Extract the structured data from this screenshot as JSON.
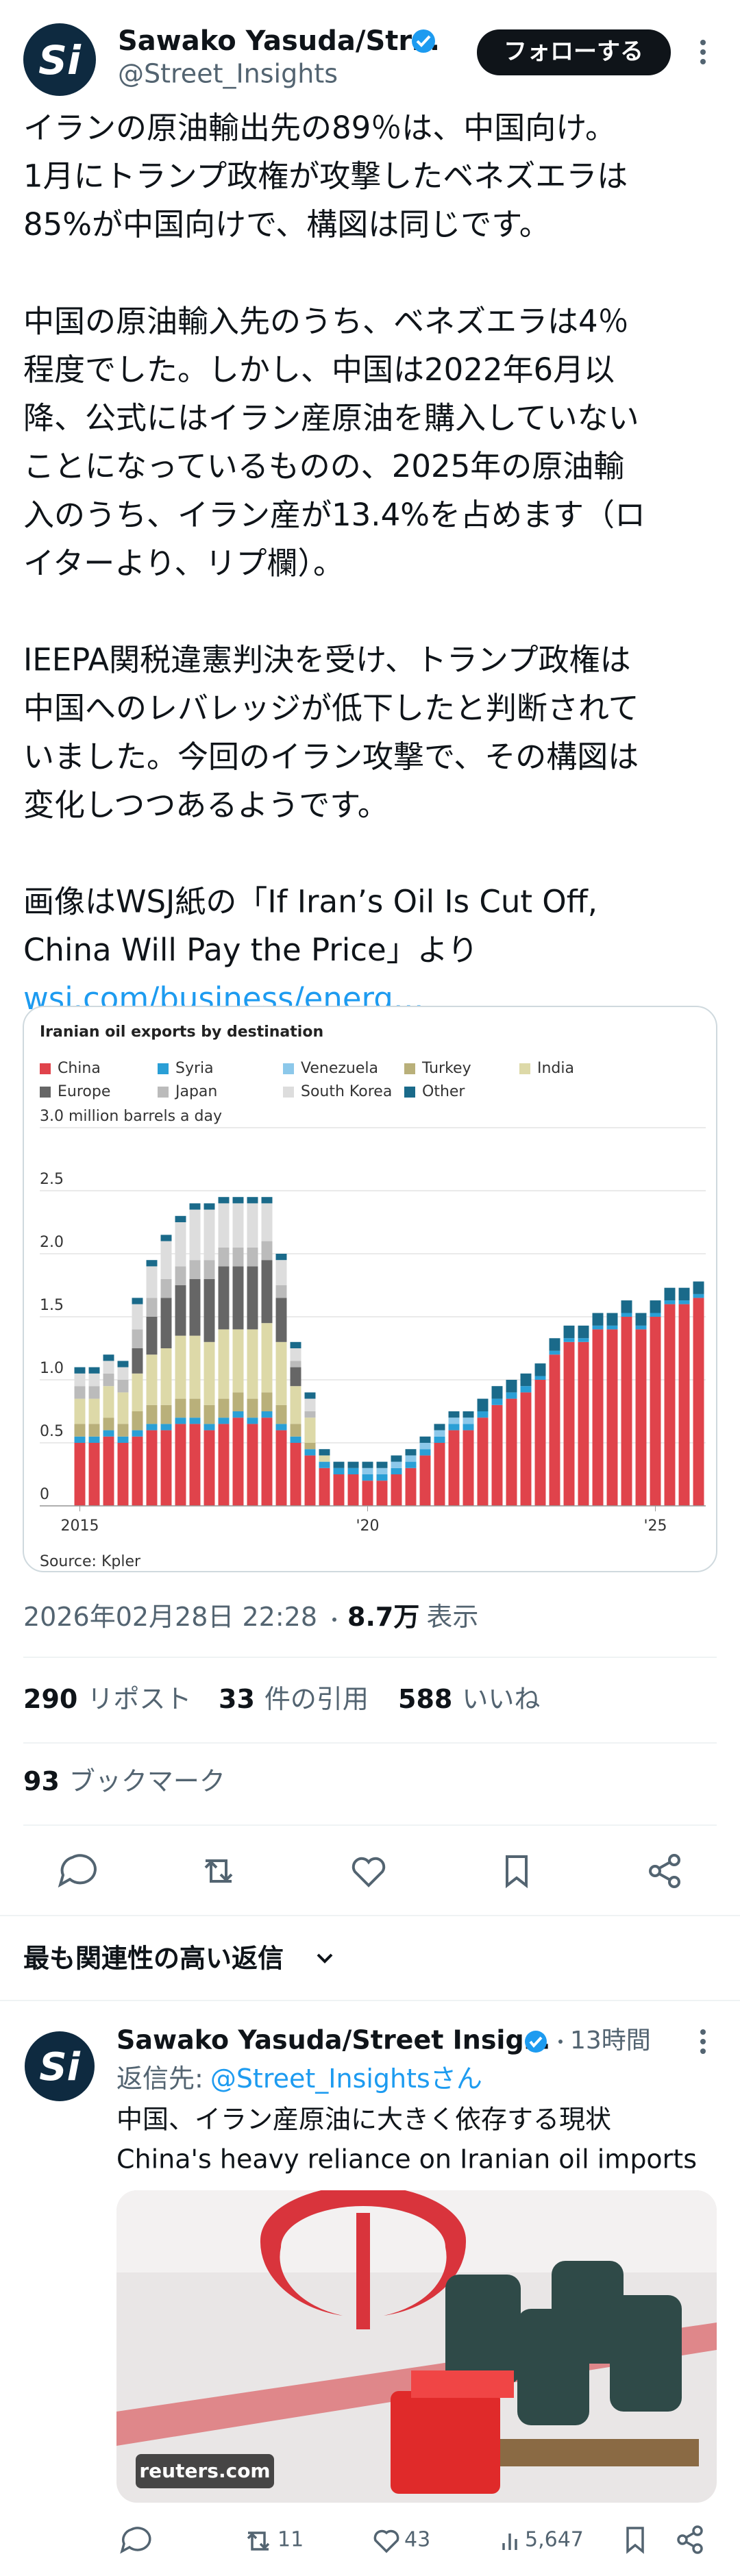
{
  "header": {
    "name": "Sawako Yasuda/Str…",
    "handle": "@Street_Insights",
    "follow": "フォローする"
  },
  "body": [
    [
      "イランの原油輸出先の89％は、中国向け。",
      "1月にトランプ政権が攻撃したベネズエラは",
      "85%が中国向けで、構図は同じです。"
    ],
    [
      "中国の原油輸入先のうち、ベネズエラは4％",
      "程度でした。しかし、中国は2022年6月以",
      "降、公式にはイラン産原油を購入していない",
      "ことになっているものの、2025年の原油輸",
      "入のうち、イラン産が13.4%を占めます（ロ",
      "イターより、リプ欄）。"
    ],
    [
      "IEEPA関税違憲判決を受け、トランプ政権は",
      "中国へのレバレッジが低下したと判断されて",
      "いました。今回のイラン攻撃で、その構図は",
      "変化しつつあるようです。"
    ],
    [
      "画像はWSJ紙の「If Iran’s Oil Is Cut Off,",
      "China Will Pay the Price」より"
    ]
  ],
  "link": "wsj.com/business/energ…",
  "chart_data": {
    "type": "bar",
    "stacked": true,
    "title": "Iranian oil exports by destination",
    "source": "Source: Kpler",
    "categories": [
      "2015",
      null,
      null,
      null,
      null,
      null,
      null,
      null,
      null,
      null,
      null,
      null,
      null,
      null,
      null,
      null,
      null,
      null,
      null,
      null,
      "'20",
      null,
      null,
      null,
      null,
      null,
      null,
      null,
      null,
      null,
      null,
      null,
      null,
      null,
      null,
      null,
      null,
      null,
      null,
      null,
      "'25",
      null,
      null,
      null
    ],
    "series": [
      {
        "name": "China",
        "color": "#e0434b",
        "values": [
          0.5,
          0.5,
          0.55,
          0.5,
          0.55,
          0.6,
          0.6,
          0.65,
          0.65,
          0.6,
          0.65,
          0.7,
          0.65,
          0.7,
          0.6,
          0.5,
          0.4,
          0.3,
          0.25,
          0.25,
          0.2,
          0.2,
          0.25,
          0.3,
          0.4,
          0.5,
          0.6,
          0.6,
          0.7,
          0.8,
          0.85,
          0.9,
          1.0,
          1.2,
          1.3,
          1.3,
          1.4,
          1.4,
          1.5,
          1.4,
          1.5,
          1.6,
          1.6,
          1.65
        ]
      },
      {
        "name": "Syria",
        "color": "#2a9fd6",
        "values": [
          0.05,
          0.05,
          0.05,
          0.05,
          0.05,
          0.05,
          0.05,
          0.05,
          0.05,
          0.05,
          0.05,
          0.05,
          0.05,
          0.05,
          0.05,
          0.05,
          0.05,
          0.05,
          0.05,
          0.05,
          0.05,
          0.05,
          0.05,
          0.05,
          0.05,
          0.05,
          0.05,
          0.05,
          0.05,
          0.05,
          0.05,
          0.05,
          0.03,
          0.03,
          0.03,
          0.03,
          0.03,
          0.03,
          0.03,
          0.03,
          0.03,
          0.03,
          0.03,
          0.03
        ]
      },
      {
        "name": "Venezuela",
        "color": "#8cc8ea",
        "values": [
          0,
          0,
          0,
          0,
          0,
          0,
          0,
          0,
          0,
          0,
          0,
          0,
          0,
          0,
          0,
          0,
          0,
          0,
          0,
          0,
          0.05,
          0.05,
          0.05,
          0.05,
          0.05,
          0.05,
          0.05,
          0.05,
          0,
          0,
          0,
          0,
          0,
          0,
          0,
          0,
          0,
          0,
          0,
          0,
          0,
          0,
          0,
          0
        ]
      },
      {
        "name": "Turkey",
        "color": "#b9b07a",
        "values": [
          0.1,
          0.1,
          0.1,
          0.1,
          0.15,
          0.15,
          0.15,
          0.15,
          0.15,
          0.15,
          0.15,
          0.15,
          0.15,
          0.15,
          0.15,
          0.1,
          0.05,
          0,
          0,
          0,
          0,
          0,
          0,
          0,
          0,
          0,
          0,
          0,
          0,
          0,
          0,
          0,
          0,
          0,
          0,
          0,
          0,
          0,
          0,
          0,
          0,
          0,
          0,
          0
        ]
      },
      {
        "name": "India",
        "color": "#ddd9a8",
        "values": [
          0.2,
          0.2,
          0.25,
          0.25,
          0.3,
          0.4,
          0.45,
          0.5,
          0.5,
          0.5,
          0.55,
          0.5,
          0.55,
          0.55,
          0.5,
          0.3,
          0.2,
          0.05,
          0,
          0,
          0,
          0,
          0,
          0,
          0,
          0,
          0,
          0,
          0,
          0,
          0,
          0,
          0,
          0,
          0,
          0,
          0,
          0,
          0,
          0,
          0,
          0,
          0,
          0
        ]
      },
      {
        "name": "Europe",
        "color": "#666666",
        "values": [
          0,
          0,
          0,
          0,
          0.2,
          0.3,
          0.4,
          0.4,
          0.45,
          0.5,
          0.5,
          0.5,
          0.5,
          0.5,
          0.35,
          0.15,
          0,
          0,
          0,
          0,
          0,
          0,
          0,
          0,
          0,
          0,
          0,
          0,
          0,
          0,
          0,
          0,
          0,
          0,
          0,
          0,
          0,
          0,
          0,
          0,
          0,
          0,
          0,
          0
        ]
      },
      {
        "name": "Japan",
        "color": "#bbbbbb",
        "values": [
          0.1,
          0.1,
          0.1,
          0.1,
          0.15,
          0.15,
          0.15,
          0.15,
          0.15,
          0.15,
          0.15,
          0.15,
          0.15,
          0.15,
          0.1,
          0.05,
          0.05,
          0,
          0,
          0,
          0,
          0,
          0,
          0,
          0,
          0,
          0,
          0,
          0,
          0,
          0,
          0,
          0,
          0,
          0,
          0,
          0,
          0,
          0,
          0,
          0,
          0,
          0,
          0
        ]
      },
      {
        "name": "South Korea",
        "color": "#dddddd",
        "values": [
          0.1,
          0.1,
          0.1,
          0.1,
          0.2,
          0.25,
          0.3,
          0.35,
          0.4,
          0.4,
          0.35,
          0.35,
          0.35,
          0.3,
          0.2,
          0.1,
          0.1,
          0,
          0,
          0,
          0,
          0,
          0,
          0,
          0,
          0,
          0,
          0,
          0,
          0,
          0,
          0,
          0,
          0,
          0,
          0,
          0,
          0,
          0,
          0,
          0,
          0,
          0,
          0
        ]
      },
      {
        "name": "Other",
        "color": "#1a6a8a",
        "values": [
          0.05,
          0.05,
          0.05,
          0.05,
          0.05,
          0.05,
          0.05,
          0.05,
          0.05,
          0.05,
          0.05,
          0.05,
          0.05,
          0.05,
          0.05,
          0.05,
          0.05,
          0.05,
          0.05,
          0.05,
          0.05,
          0.05,
          0.05,
          0.05,
          0.05,
          0.05,
          0.05,
          0.05,
          0.1,
          0.1,
          0.1,
          0.1,
          0.1,
          0.1,
          0.1,
          0.1,
          0.1,
          0.1,
          0.1,
          0.1,
          0.1,
          0.1,
          0.1,
          0.1
        ]
      }
    ],
    "ylim": [
      0,
      3
    ],
    "yticks": [
      0,
      0.5,
      {
        "value": 1,
        "label": "1.0"
      },
      1.5,
      {
        "value": 2,
        "label": "2.0"
      },
      2.5,
      {
        "value": 3,
        "label": "3.0 million barrels a day"
      }
    ],
    "legend": "top-left"
  },
  "meta": {
    "timestamp": "2026年02月28日 22:28",
    "views": "8.7万",
    "views_label": "表示"
  },
  "stats": {
    "reposts": 290,
    "reposts_label": "リポスト",
    "quotes": 33,
    "quotes_label": "件の引用",
    "likes": 588,
    "likes_label": "いいね",
    "bookmarks": 93,
    "bookmarks_label": "ブックマーク"
  },
  "replies_header": "最も関連性の高い返信",
  "reply": {
    "name": "Sawako Yasuda/Street Insig…",
    "time": "13時間",
    "reply_to_prefix": "返信先:",
    "reply_to": "@Street_Insightsさん",
    "lines": [
      "中国、イラン産原油に大きく依存する現状",
      "China's heavy reliance on Iranian oil imports"
    ],
    "image_source": "reuters.com",
    "retweets": 11,
    "likes": 43,
    "views": "5,647"
  }
}
